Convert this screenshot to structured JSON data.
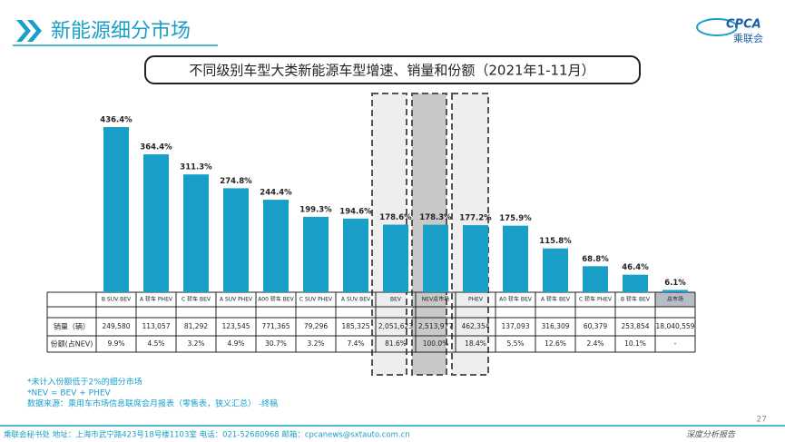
{
  "header": {
    "title": "新能源细分市场",
    "logo_text": "CPCA",
    "logo_cn": "乘联会"
  },
  "chart_data": {
    "type": "bar",
    "title": "不同级别车型大类新能源车型增速、销量和份额（2021年1-11月）",
    "categories": [
      "B SUV BEV",
      "A 轿车 PHEV",
      "C 轿车 BEV",
      "A SUV PHEV",
      "A00 轿车 BEV",
      "C SUV PHEV",
      "A SUV BEV",
      "BEV",
      "NEV总市场",
      "PHEV",
      "A0 轿车 BEV",
      "A 轿车 BEV",
      "C 轿车 PHEV",
      "B 轿车 BEV",
      "总市场"
    ],
    "values": [
      436.4,
      364.4,
      311.3,
      274.8,
      244.4,
      199.3,
      194.6,
      178.6,
      178.3,
      177.2,
      175.9,
      115.8,
      68.8,
      46.4,
      6.1
    ],
    "value_labels": [
      "436.4%",
      "364.4%",
      "311.3%",
      "274.8%",
      "244.4%",
      "199.3%",
      "194.6%",
      "178.6%",
      "178.3%",
      "177.2%",
      "175.9%",
      "115.8%",
      "68.8%",
      "46.4%",
      "6.1%"
    ],
    "color": "#1a9fc9"
  },
  "table": {
    "row_labels": [
      "销量（辆）",
      "份额(占NEV)"
    ],
    "rows": [
      [
        "249,580",
        "113,057",
        "81,292",
        "123,545",
        "771,365",
        "79,296",
        "185,325",
        "2,051,623",
        "2,513,977",
        "462,354",
        "137,093",
        "316,309",
        "60,379",
        "253,854",
        "18,040,559"
      ],
      [
        "9.9%",
        "4.5%",
        "3.2%",
        "4.9%",
        "30.7%",
        "3.2%",
        "7.4%",
        "81.6%",
        "100.0%",
        "18.4%",
        "5.5%",
        "12.6%",
        "2.4%",
        "10.1%",
        "-"
      ]
    ]
  },
  "notes": [
    "*未计入份额低于2%的细分市场",
    "*NEV = BEV + PHEV",
    "数据来源：乘用车市场信息联席会月报表（零售表，狭义汇总） -终稿"
  ],
  "footer": {
    "contact": "乘联会秘书处  地址：上海市武宁路423号18号楼1103室  电话：021-52680968  邮箱：cpcanews@sxtauto.com.cn",
    "tag": "深度分析报告",
    "page": "27"
  }
}
